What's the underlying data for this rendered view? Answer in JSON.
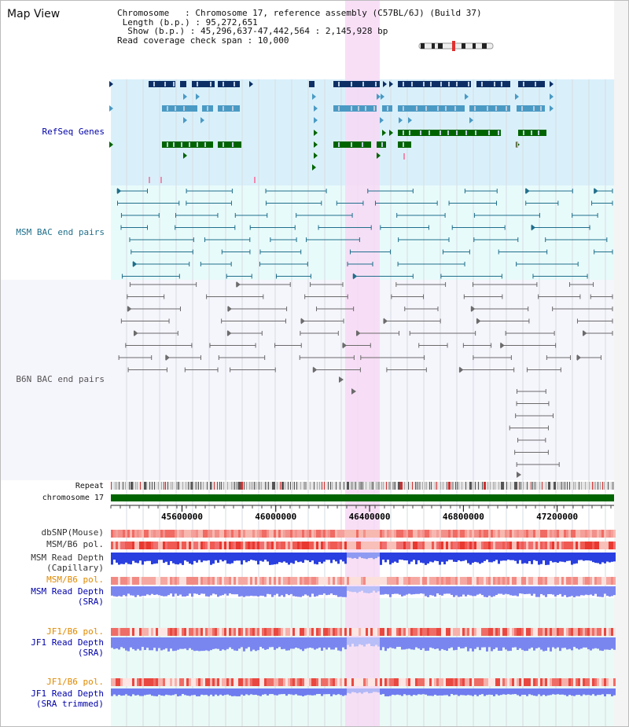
{
  "header": {
    "title": "Map View",
    "chromosome": "Chromosome   : Chromosome 17, reference assembly (C57BL/6J) (Build 37)",
    "length": " Length (b.p.) : 95,272,651",
    "show": "  Show (b.p.) : 45,296,637-47,442,564 : 2,145,928 bp",
    "coverage": "Read coverage check span : 10,000"
  },
  "tracks": {
    "refseq": "RefSeq Genes",
    "msm_bac": "MSM BAC end pairs",
    "b6n_bac": "B6N BAC end pairs",
    "repeat": "Repeat",
    "chromosome": "chromosome 17",
    "dbsnp": "dbSNP(Mouse)",
    "msm_pol": "MSM/B6 pol.",
    "msm_depth_cap": "MSM Read Depth\n(Capillary)",
    "msm_pol2": "MSM/B6 pol.",
    "msm_depth_sra": "MSM Read Depth\n(SRA)",
    "jf1_pol": "JF1/B6 pol.",
    "jf1_depth_sra": "JF1 Read Depth\n(SRA)",
    "jf1_pol2": "JF1/B6 pol.",
    "jf1_depth_trim": "JF1 Read Depth\n(SRA trimmed)"
  },
  "axis": {
    "ticks": [
      {
        "value": 45600000,
        "label": "45600000"
      },
      {
        "value": 46000000,
        "label": "46000000"
      },
      {
        "value": 46400000,
        "label": "46400000"
      },
      {
        "value": 46800000,
        "label": "46800000"
      },
      {
        "value": 47200000,
        "label": "47200000"
      }
    ],
    "start": 45296637,
    "end": 47442564
  },
  "colors": {
    "refseq_bg": "#d9f0fa",
    "msm_bg": "#e8fbfb",
    "b6n_bg": "#f5f5fc",
    "highlight": "#f7d9f4",
    "gene_dark": "#0d2f66",
    "gene_mid": "#4a9ac4",
    "gene_green": "#006400",
    "msm_line": "#1f6f8b",
    "b6n_line": "#6b6b6b",
    "label_blue": "#0000aa",
    "label_orange": "#e08a00",
    "label_teal": "#1f6f8b",
    "label_gray": "#555555"
  }
}
